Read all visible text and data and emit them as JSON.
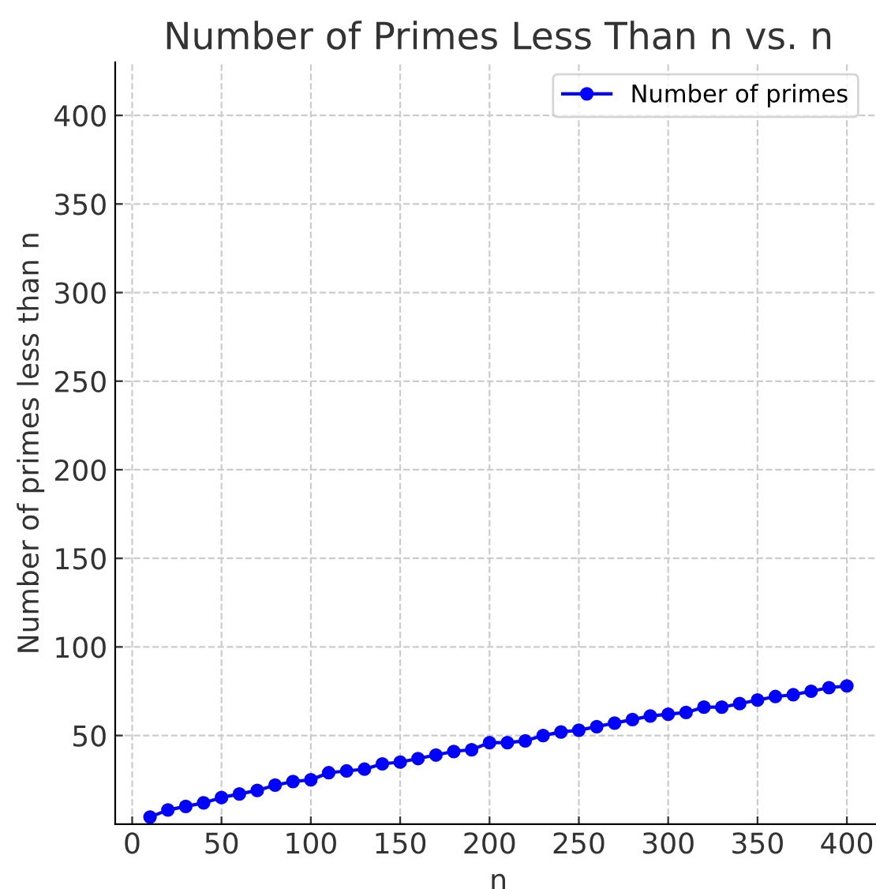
{
  "chart_data": {
    "type": "line",
    "title": "Number of Primes Less Than n vs. n",
    "xlabel": "n",
    "ylabel": "Number of primes less than n",
    "x": [
      10,
      20,
      30,
      40,
      50,
      60,
      70,
      80,
      90,
      100,
      110,
      120,
      130,
      140,
      150,
      160,
      170,
      180,
      190,
      200,
      210,
      220,
      230,
      240,
      250,
      260,
      270,
      280,
      290,
      300,
      310,
      320,
      330,
      340,
      350,
      360,
      370,
      380,
      390,
      400
    ],
    "series": [
      {
        "name": "Number of primes",
        "color": "#0000ff",
        "values": [
          4,
          8,
          10,
          12,
          15,
          17,
          19,
          22,
          24,
          25,
          29,
          30,
          31,
          34,
          35,
          37,
          39,
          41,
          42,
          46,
          46,
          47,
          50,
          52,
          53,
          55,
          57,
          59,
          61,
          62,
          63,
          66,
          66,
          68,
          70,
          72,
          73,
          75,
          77,
          78
        ]
      }
    ],
    "xlim": [
      -9.5,
      419.5
    ],
    "ylim": [
      0,
      430
    ],
    "xticks": [
      0,
      50,
      100,
      150,
      200,
      250,
      300,
      350,
      400
    ],
    "yticks": [
      50,
      100,
      150,
      200,
      250,
      300,
      350,
      400
    ],
    "grid": true,
    "legend": "top right",
    "marker": "circle",
    "line_style": "solid"
  }
}
